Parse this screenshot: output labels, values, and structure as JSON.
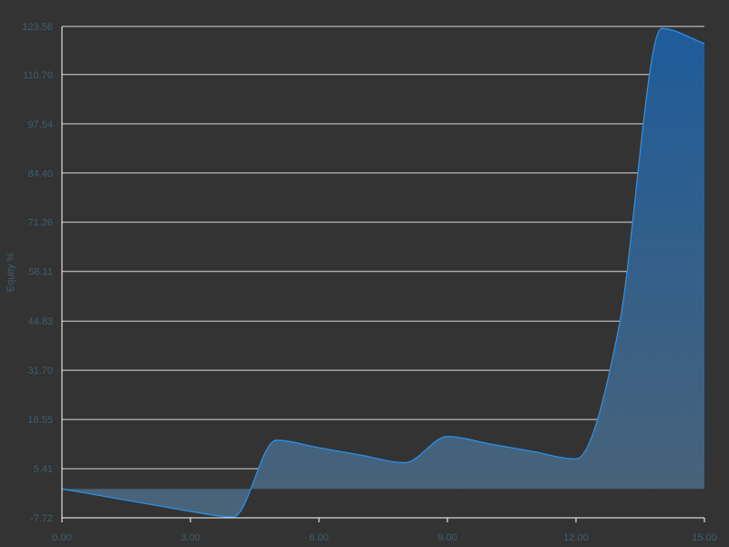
{
  "chart_data": {
    "type": "area",
    "title": "",
    "xlabel": "",
    "ylabel": "Equity %",
    "xlim": [
      0,
      15
    ],
    "ylim": [
      -7.72,
      123.56
    ],
    "grid": true,
    "legend": "none",
    "colors": {
      "background": "#333333",
      "grid": "#d9d9d9",
      "line": "#2b8fe6",
      "fill_top": "#1f5c9a",
      "fill_bottom": "#4a6378",
      "axis_text": "#3f5e6e",
      "axis_line": "#ffffff"
    },
    "x_ticks": [
      0,
      3,
      6,
      9,
      12,
      15
    ],
    "x_tick_labels": [
      "0.00",
      "3.00",
      "6.00",
      "9.00",
      "12.00",
      "15.00"
    ],
    "y_ticks": [
      -7.72,
      5.41,
      18.55,
      31.7,
      44.83,
      58.11,
      71.26,
      84.4,
      97.54,
      110.7,
      123.56
    ],
    "y_tick_labels": [
      "-7.72",
      "5.41",
      "18.55",
      "31.70",
      "44.83",
      "58.11",
      "71.26",
      "84.40",
      "97.54",
      "110.70",
      "123.56"
    ],
    "baseline": 0,
    "series": [
      {
        "x": [
          0,
          1,
          2,
          3,
          4,
          5,
          6,
          7,
          8,
          9,
          10,
          11,
          12,
          13,
          14,
          15
        ],
        "values": [
          0,
          -2,
          -4,
          -6,
          -7.5,
          13,
          11,
          9,
          7,
          14,
          12,
          10,
          8,
          43,
          123,
          119
        ]
      }
    ]
  }
}
